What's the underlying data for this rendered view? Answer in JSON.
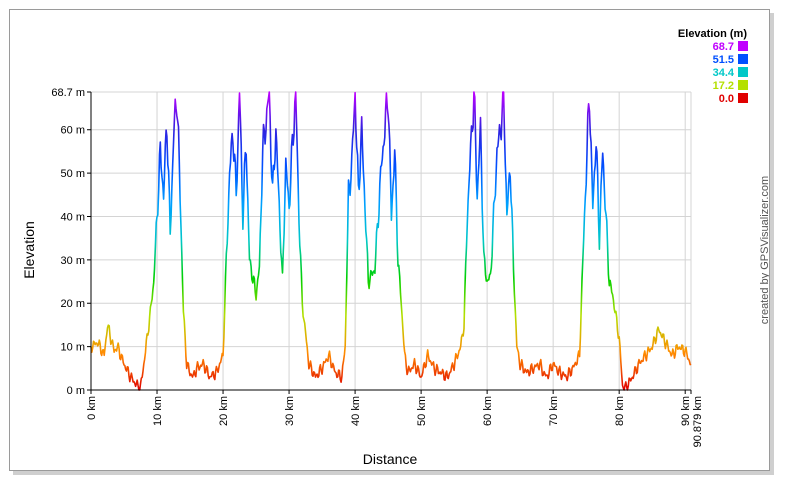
{
  "chart_data": {
    "type": "line",
    "title": "",
    "xlabel": "Distance",
    "ylabel": "Elevation",
    "credit": "created by GPSVisualizer.com",
    "xlim": [
      0,
      90.879
    ],
    "ylim": [
      0,
      68.7
    ],
    "x_ticks": [
      {
        "value": 0,
        "label": "0 km"
      },
      {
        "value": 10,
        "label": "10 km"
      },
      {
        "value": 20,
        "label": "20 km"
      },
      {
        "value": 30,
        "label": "30 km"
      },
      {
        "value": 40,
        "label": "40 km"
      },
      {
        "value": 50,
        "label": "50 km"
      },
      {
        "value": 60,
        "label": "60 km"
      },
      {
        "value": 70,
        "label": "70 km"
      },
      {
        "value": 80,
        "label": "80 km"
      },
      {
        "value": 90,
        "label": "90 km"
      },
      {
        "value": 90.879,
        "label": "90.879 km"
      }
    ],
    "y_ticks": [
      {
        "value": 0,
        "label": "0 m"
      },
      {
        "value": 10,
        "label": "10 m"
      },
      {
        "value": 20,
        "label": "20 m"
      },
      {
        "value": 30,
        "label": "30 m"
      },
      {
        "value": 40,
        "label": "40 m"
      },
      {
        "value": 50,
        "label": "50 m"
      },
      {
        "value": 60,
        "label": "60 m"
      },
      {
        "value": 68.7,
        "label": "68.7 m"
      }
    ],
    "grid": true,
    "legend": {
      "title": "Elevation (m)",
      "position": "top-right",
      "entries": [
        {
          "label": "68.7",
          "color": "#c000ff"
        },
        {
          "label": "51.5",
          "color": "#0050ff"
        },
        {
          "label": "34.4",
          "color": "#00c8c8"
        },
        {
          "label": "17.2",
          "color": "#b4e000"
        },
        {
          "label": "0.0",
          "color": "#e00000"
        }
      ]
    },
    "color_scale": {
      "stops": [
        {
          "value": 0,
          "color": "#e00000"
        },
        {
          "value": 8.6,
          "color": "#ff8c00"
        },
        {
          "value": 17.2,
          "color": "#b4e000"
        },
        {
          "value": 25.8,
          "color": "#00d000"
        },
        {
          "value": 34.4,
          "color": "#00c8c8"
        },
        {
          "value": 43,
          "color": "#00a0ff"
        },
        {
          "value": 51.5,
          "color": "#0050ff"
        },
        {
          "value": 60.1,
          "color": "#3020e0"
        },
        {
          "value": 68.7,
          "color": "#c000ff"
        }
      ]
    },
    "series": [
      {
        "name": "Elevation",
        "x": [
          0,
          1,
          2,
          2.5,
          3.5,
          4,
          5,
          6,
          7,
          7.5,
          8,
          9,
          9.5,
          10,
          10.5,
          11,
          11.5,
          12,
          12.5,
          13,
          13.5,
          14,
          14.5,
          15,
          15.5,
          16,
          17,
          18,
          19,
          20,
          20.5,
          21,
          21.5,
          22,
          22.5,
          23,
          23.5,
          24,
          24.5,
          25,
          25.5,
          26,
          27,
          27.5,
          28,
          29,
          29.5,
          30,
          30.5,
          31,
          31.5,
          32,
          33,
          34,
          35,
          36,
          37,
          38,
          38.5,
          39,
          39.5,
          40,
          40.5,
          41,
          42,
          43,
          44,
          44.5,
          45,
          45.5,
          46,
          46.5,
          47,
          47.5,
          48,
          48.5,
          49,
          50,
          51,
          52,
          53,
          54,
          55,
          56,
          56.5,
          57,
          57.5,
          58,
          58.5,
          59,
          59.5,
          60,
          60.5,
          61,
          61.5,
          62,
          62.5,
          63,
          63.5,
          64,
          64.5,
          65,
          66,
          67,
          68,
          68.5,
          69,
          70,
          70.5,
          71,
          72,
          73,
          74,
          74.5,
          75,
          75.5,
          76,
          76.5,
          77,
          77.5,
          78,
          78.5,
          79,
          80,
          80.5,
          81,
          82,
          83,
          84,
          85,
          86,
          87,
          88,
          89,
          90,
          90.879
        ],
        "y": [
          10,
          11,
          8,
          15,
          9,
          10,
          6,
          3,
          1,
          0.5,
          6,
          18,
          25,
          40,
          55,
          45,
          62,
          36,
          58,
          68.7,
          45,
          18,
          6,
          4,
          3,
          5,
          6,
          3,
          4,
          8,
          30,
          50,
          60,
          45,
          68.7,
          40,
          57,
          30,
          26,
          22,
          28,
          55,
          68.7,
          45,
          60,
          25,
          52,
          42,
          56,
          68.7,
          40,
          20,
          6,
          3,
          5,
          8,
          4,
          3,
          10,
          45,
          52,
          68.7,
          45,
          60,
          25,
          28,
          52,
          60,
          68.7,
          40,
          55,
          30,
          20,
          8,
          4,
          5,
          6,
          3,
          8,
          5,
          4,
          3,
          6,
          10,
          15,
          40,
          55,
          68.7,
          45,
          60,
          30,
          25,
          26,
          40,
          55,
          60,
          68.7,
          40,
          52,
          28,
          10,
          6,
          4,
          5,
          6,
          4,
          3,
          6,
          5,
          4,
          3,
          5,
          8,
          30,
          50,
          68.7,
          42,
          58,
          35,
          55,
          40,
          25,
          22,
          12,
          1,
          0.5,
          3,
          6,
          8,
          10,
          14,
          11,
          8,
          10,
          9,
          6
        ]
      }
    ]
  }
}
